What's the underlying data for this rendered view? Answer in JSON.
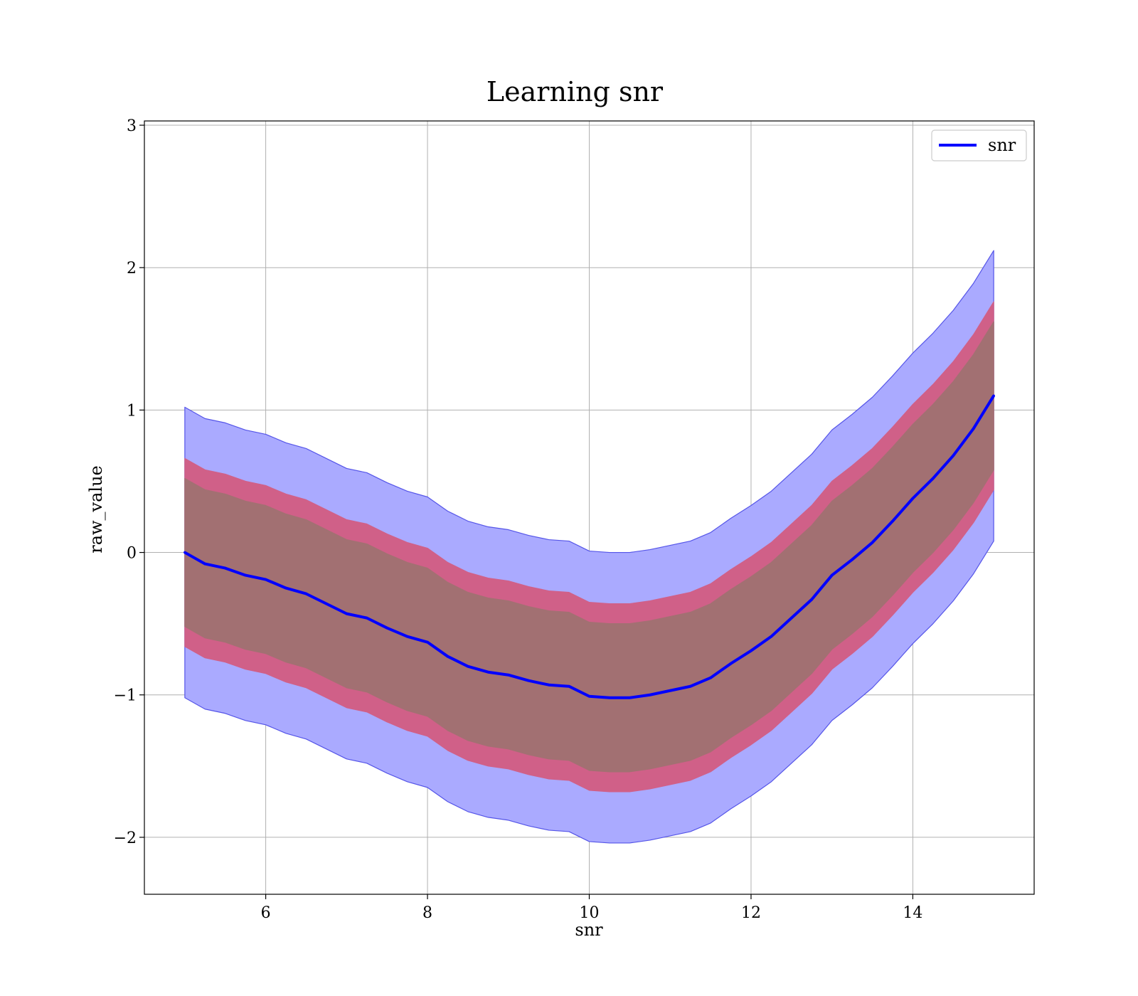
{
  "chart_data": {
    "type": "line",
    "title": "Learning snr",
    "xlabel": "snr",
    "ylabel": "raw_value",
    "xlim": [
      4.5,
      15.5
    ],
    "ylim": [
      -2.4,
      3.03
    ],
    "xticks": [
      6,
      8,
      10,
      12,
      14
    ],
    "yticks": [
      -2,
      -1,
      0,
      1,
      2,
      3
    ],
    "xtick_labels": [
      "6",
      "8",
      "10",
      "12",
      "14"
    ],
    "ytick_labels": [
      "−2",
      "−1",
      "0",
      "1",
      "2",
      "3"
    ],
    "grid": true,
    "legend_position": "top-right",
    "colors": {
      "mean_line": "#0000ff",
      "outer_band": "#aaaaff",
      "outer_band_edge": "#5555e8",
      "mid_band": "#d06088",
      "inner_band": "#a27072"
    },
    "series": [
      {
        "name": "snr",
        "x": [
          5.0,
          5.25,
          5.5,
          5.75,
          6.0,
          6.25,
          6.5,
          6.75,
          7.0,
          7.25,
          7.5,
          7.75,
          8.0,
          8.25,
          8.5,
          8.75,
          9.0,
          9.25,
          9.5,
          9.75,
          10.0,
          10.25,
          10.5,
          10.75,
          11.0,
          11.25,
          11.5,
          11.75,
          12.0,
          12.25,
          12.5,
          12.75,
          13.0,
          13.25,
          13.5,
          13.75,
          14.0,
          14.25,
          14.5,
          14.75,
          15.0
        ],
        "y": [
          0.0,
          -0.08,
          -0.11,
          -0.16,
          -0.19,
          -0.25,
          -0.29,
          -0.36,
          -0.43,
          -0.46,
          -0.53,
          -0.59,
          -0.63,
          -0.73,
          -0.8,
          -0.84,
          -0.86,
          -0.9,
          -0.93,
          -0.94,
          -1.01,
          -1.02,
          -1.02,
          -1.0,
          -0.97,
          -0.94,
          -0.88,
          -0.78,
          -0.69,
          -0.59,
          -0.46,
          -0.33,
          -0.16,
          -0.05,
          0.07,
          0.22,
          0.38,
          0.52,
          0.68,
          0.87,
          1.1
        ],
        "band_outer_halfwidth": 1.02,
        "band_mid_halfwidth": 0.66,
        "band_inner_halfwidth": 0.52
      }
    ]
  }
}
